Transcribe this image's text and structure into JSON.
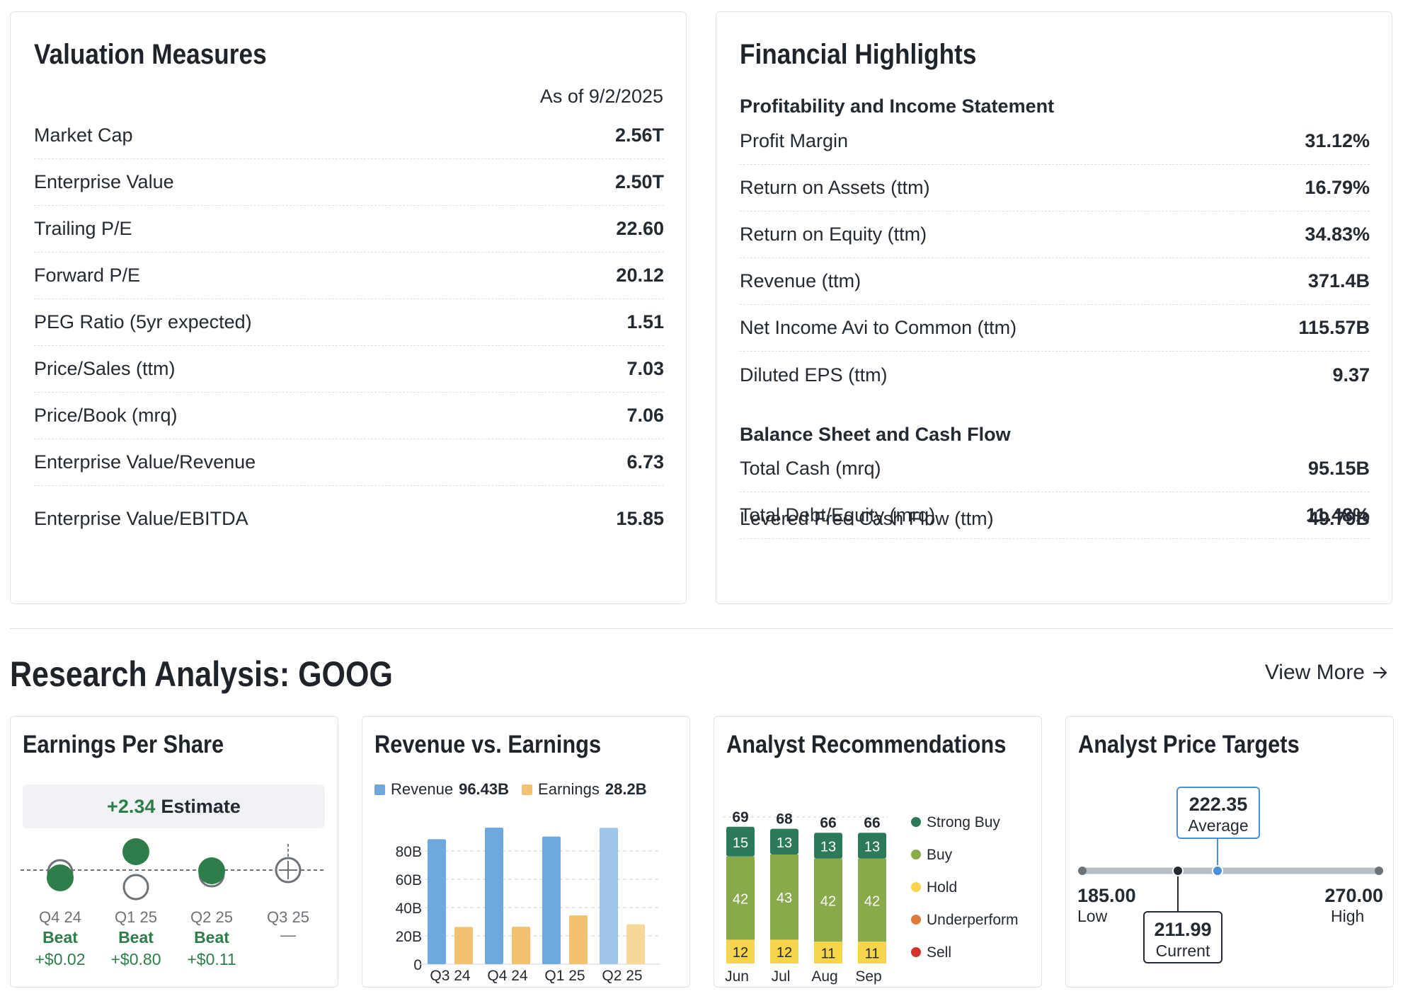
{
  "valuation": {
    "title": "Valuation Measures",
    "as_of": "As of 9/2/2025",
    "rows": [
      {
        "label": "Market Cap",
        "value": "2.56T"
      },
      {
        "label": "Enterprise Value",
        "value": "2.50T"
      },
      {
        "label": "Trailing P/E",
        "value": "22.60"
      },
      {
        "label": "Forward P/E",
        "value": "20.12"
      },
      {
        "label": "PEG Ratio (5yr expected)",
        "value": "1.51"
      },
      {
        "label": "Price/Sales (ttm)",
        "value": "7.03"
      },
      {
        "label": "Price/Book (mrq)",
        "value": "7.06"
      },
      {
        "label": "Enterprise Value/Revenue",
        "value": "6.73"
      },
      {
        "label": "Enterprise Value/EBITDA",
        "value": "15.85"
      }
    ]
  },
  "financial": {
    "title": "Financial Highlights",
    "profitability": {
      "heading": "Profitability and Income Statement",
      "rows": [
        {
          "label": "Profit Margin",
          "value": "31.12%"
        },
        {
          "label": "Return on Assets (ttm)",
          "value": "16.79%"
        },
        {
          "label": "Return on Equity (ttm)",
          "value": "34.83%"
        },
        {
          "label": "Revenue (ttm)",
          "value": "371.4B"
        },
        {
          "label": "Net Income Avi to Common (ttm)",
          "value": "115.57B"
        },
        {
          "label": "Diluted EPS (ttm)",
          "value": "9.37"
        }
      ]
    },
    "balance": {
      "heading": "Balance Sheet and Cash Flow",
      "rows": [
        {
          "label": "Total Cash (mrq)",
          "value": "95.15B"
        },
        {
          "label": "Total Debt/Equity (mrq)",
          "value": "11.48%"
        },
        {
          "label": "Levered Free Cash Flow (ttm)",
          "value": "49.79B"
        }
      ]
    }
  },
  "research": {
    "title": "Research Analysis: GOOG",
    "view_more": "View More"
  },
  "eps": {
    "title": "Earnings Per Share",
    "estimate_value": "+2.34",
    "estimate_label": "Estimate",
    "quarters": [
      {
        "label": "Q4 24",
        "status": "Beat",
        "diff": "+$0.02"
      },
      {
        "label": "Q1 25",
        "status": "Beat",
        "diff": "+$0.80"
      },
      {
        "label": "Q2 25",
        "status": "Beat",
        "diff": "+$0.11"
      },
      {
        "label": "Q3 25",
        "status": "",
        "diff": "—"
      }
    ]
  },
  "revenue_earnings": {
    "title": "Revenue vs. Earnings",
    "legend_revenue": "Revenue",
    "legend_revenue_value": "96.43B",
    "legend_earnings": "Earnings",
    "legend_earnings_value": "28.2B"
  },
  "recommendations": {
    "title": "Analyst Recommendations",
    "legend": [
      "Strong Buy",
      "Buy",
      "Hold",
      "Underperform",
      "Sell"
    ],
    "months": [
      {
        "label": "Jun",
        "total": "69",
        "strong_buy": "15",
        "buy": "42",
        "hold": "12"
      },
      {
        "label": "Jul",
        "total": "68",
        "strong_buy": "13",
        "buy": "43",
        "hold": "12"
      },
      {
        "label": "Aug",
        "total": "66",
        "strong_buy": "13",
        "buy": "42",
        "hold": "11"
      },
      {
        "label": "Sep",
        "total": "66",
        "strong_buy": "13",
        "buy": "42",
        "hold": "11"
      }
    ]
  },
  "price_targets": {
    "title": "Analyst Price Targets",
    "average": "222.35",
    "average_label": "Average",
    "low": "185.00",
    "low_label": "Low",
    "high": "270.00",
    "high_label": "High",
    "current": "211.99",
    "current_label": "Current"
  },
  "colors": {
    "strong_buy": "#2d7a5a",
    "buy": "#8aa94b",
    "hold": "#f7d54a",
    "underperform": "#e07a3a",
    "sell": "#d4322c",
    "revenue": "#6fa8dc",
    "earnings": "#f2c270",
    "beat": "#2f7d4a"
  },
  "chart_data": [
    {
      "type": "bar",
      "title": "Revenue vs. Earnings",
      "categories": [
        "Q3 24",
        "Q4 24",
        "Q1 25",
        "Q2 25"
      ],
      "series": [
        {
          "name": "Revenue",
          "values": [
            88.3,
            96.5,
            90.2,
            96.4
          ]
        },
        {
          "name": "Earnings",
          "values": [
            26.3,
            26.5,
            34.5,
            28.2
          ]
        }
      ],
      "ylim": [
        0,
        100
      ],
      "yticks": [
        "0",
        "20B",
        "40B",
        "60B",
        "80B"
      ]
    },
    {
      "type": "bar",
      "title": "Analyst Recommendations",
      "categories": [
        "Jun",
        "Jul",
        "Aug",
        "Sep"
      ],
      "series": [
        {
          "name": "Strong Buy",
          "values": [
            15,
            13,
            13,
            13
          ]
        },
        {
          "name": "Buy",
          "values": [
            42,
            43,
            42,
            42
          ]
        },
        {
          "name": "Hold",
          "values": [
            12,
            12,
            11,
            11
          ]
        },
        {
          "name": "Underperform",
          "values": [
            0,
            0,
            0,
            0
          ]
        },
        {
          "name": "Sell",
          "values": [
            0,
            0,
            0,
            0
          ]
        }
      ]
    },
    {
      "type": "scatter",
      "title": "Earnings Per Share",
      "categories": [
        "Q4 24",
        "Q1 25",
        "Q2 25",
        "Q3 25"
      ],
      "series": [
        {
          "name": "Actual",
          "values": [
            2.15,
            2.81,
            2.31,
            null
          ]
        },
        {
          "name": "Estimate",
          "values": [
            2.13,
            2.01,
            2.2,
            2.34
          ]
        }
      ]
    }
  ]
}
